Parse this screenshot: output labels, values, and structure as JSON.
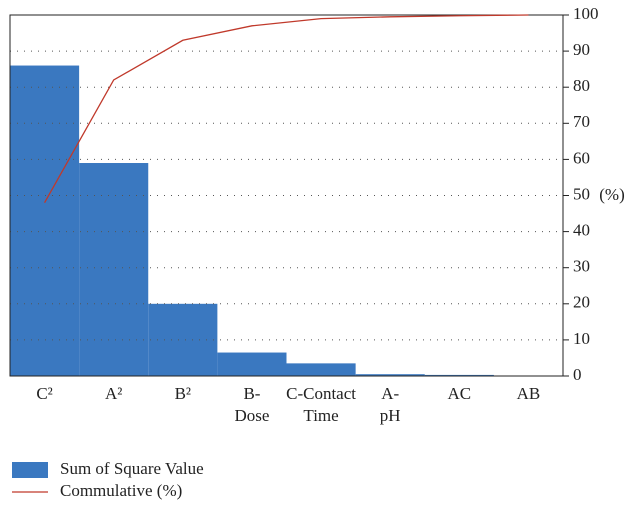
{
  "chart_data": {
    "type": "pareto",
    "y_axis_label": "(%)",
    "categories": [
      "C²",
      "A²",
      "B²",
      "B-\nDose",
      "C-Contact\nTime",
      "A-\npH",
      "AC",
      "AB"
    ],
    "series": [
      {
        "name": "Sum of Square Value",
        "type": "bar",
        "color": "#3a78c0",
        "values": [
          86,
          59,
          20,
          6.5,
          3.5,
          0.5,
          0.3,
          0
        ]
      },
      {
        "name": "Commulative (%)",
        "type": "line",
        "color": "#c0392b",
        "values": [
          48,
          82,
          93,
          97,
          99,
          99.5,
          99.8,
          100
        ]
      }
    ],
    "ylim": [
      0,
      100
    ],
    "yticks": [
      0,
      10,
      20,
      30,
      40,
      50,
      60,
      70,
      80,
      90,
      100
    ],
    "grid": true
  }
}
